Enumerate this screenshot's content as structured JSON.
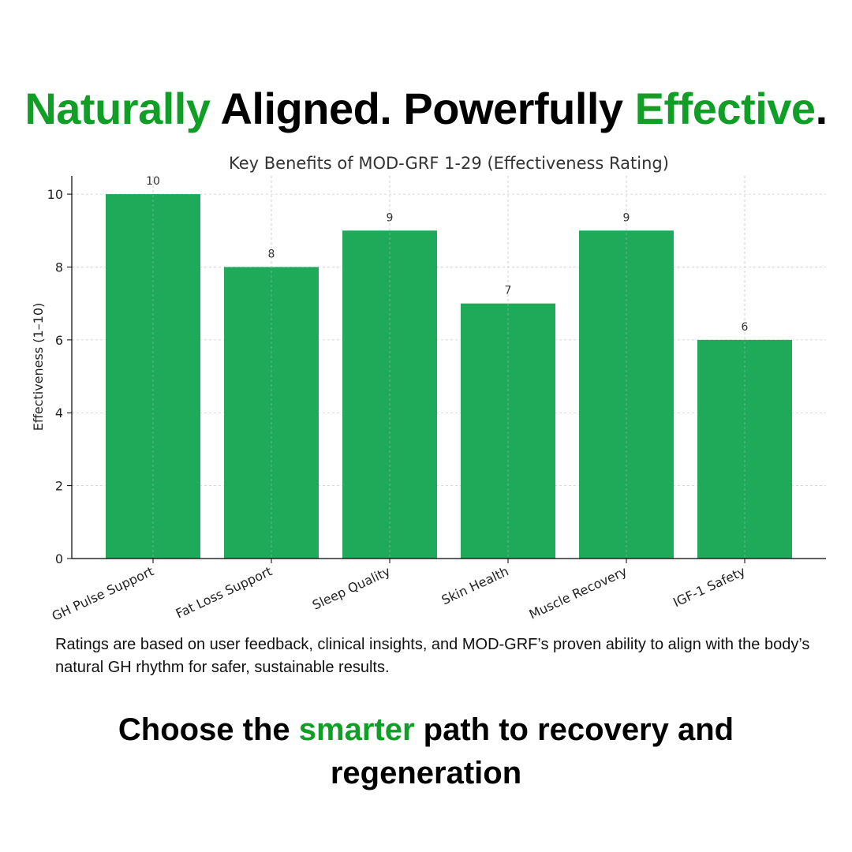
{
  "headline": {
    "part1": "Naturally",
    "part2": " Aligned. Powerfully ",
    "part3": "Effective",
    "part4": "."
  },
  "chart_data": {
    "type": "bar",
    "title": "Key Benefits of MOD-GRF 1-29 (Effectiveness Rating)",
    "xlabel": "",
    "ylabel": "Effectiveness (1–10)",
    "categories": [
      "GH Pulse Support",
      "Fat Loss Support",
      "Sleep Quality",
      "Skin Health",
      "Muscle Recovery",
      "IGF-1 Safety"
    ],
    "values": [
      10,
      8,
      9,
      7,
      9,
      6
    ],
    "ylim": [
      0,
      10.5
    ],
    "yticks": [
      0,
      2,
      4,
      6,
      8,
      10
    ],
    "grid": true,
    "bar_color": "#1faa59",
    "data_labels": true
  },
  "caption": "Ratings are based on user feedback, clinical insights, and MOD-GRF’s proven ability to align with the body’s natural GH rhythm for safer, sustainable results.",
  "cta": {
    "part1": "Choose the ",
    "part2": "smarter",
    "part3": " path to recovery and regeneration"
  },
  "colors": {
    "accent": "#119e26",
    "bar": "#1faa59"
  }
}
